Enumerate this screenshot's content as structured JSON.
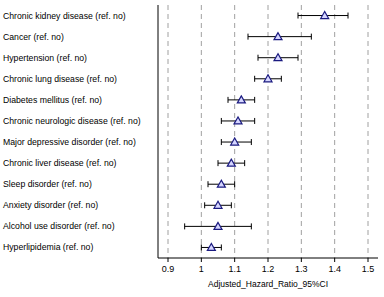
{
  "chart_data": {
    "type": "forest",
    "x_label": "Adjusted_Hazard_Ratio_95%CI",
    "categories": [
      "Chronic kidney disease (ref. no)",
      "Cancer (ref. no)",
      "Hypertension (ref. no)",
      "Chronic lung disease (ref. no)",
      "Diabetes mellitus (ref. no)",
      "Chronic neurologic disease (ref. no)",
      "Major depressive disorder (ref. no)",
      "Chronic liver disease (ref. no)",
      "Sleep disorder (ref. no)",
      "Anxiety disorder (ref. no)",
      "Alcohol use disorder (ref. no)",
      "Hyperlipidemia (ref. no)"
    ],
    "values": [
      1.37,
      1.23,
      1.23,
      1.2,
      1.12,
      1.11,
      1.1,
      1.09,
      1.06,
      1.05,
      1.05,
      1.03
    ],
    "ci_lower": [
      1.29,
      1.14,
      1.17,
      1.16,
      1.08,
      1.06,
      1.06,
      1.05,
      1.02,
      1.01,
      0.95,
      1.0
    ],
    "ci_upper": [
      1.44,
      1.33,
      1.29,
      1.24,
      1.16,
      1.16,
      1.15,
      1.13,
      1.1,
      1.09,
      1.15,
      1.06
    ],
    "xlim": [
      0.87,
      1.53
    ],
    "xticks": [
      0.9,
      1,
      1.1,
      1.2,
      1.3,
      1.4,
      1.5
    ],
    "grid": true,
    "marker": "triangle",
    "color": "#1a1a80"
  }
}
